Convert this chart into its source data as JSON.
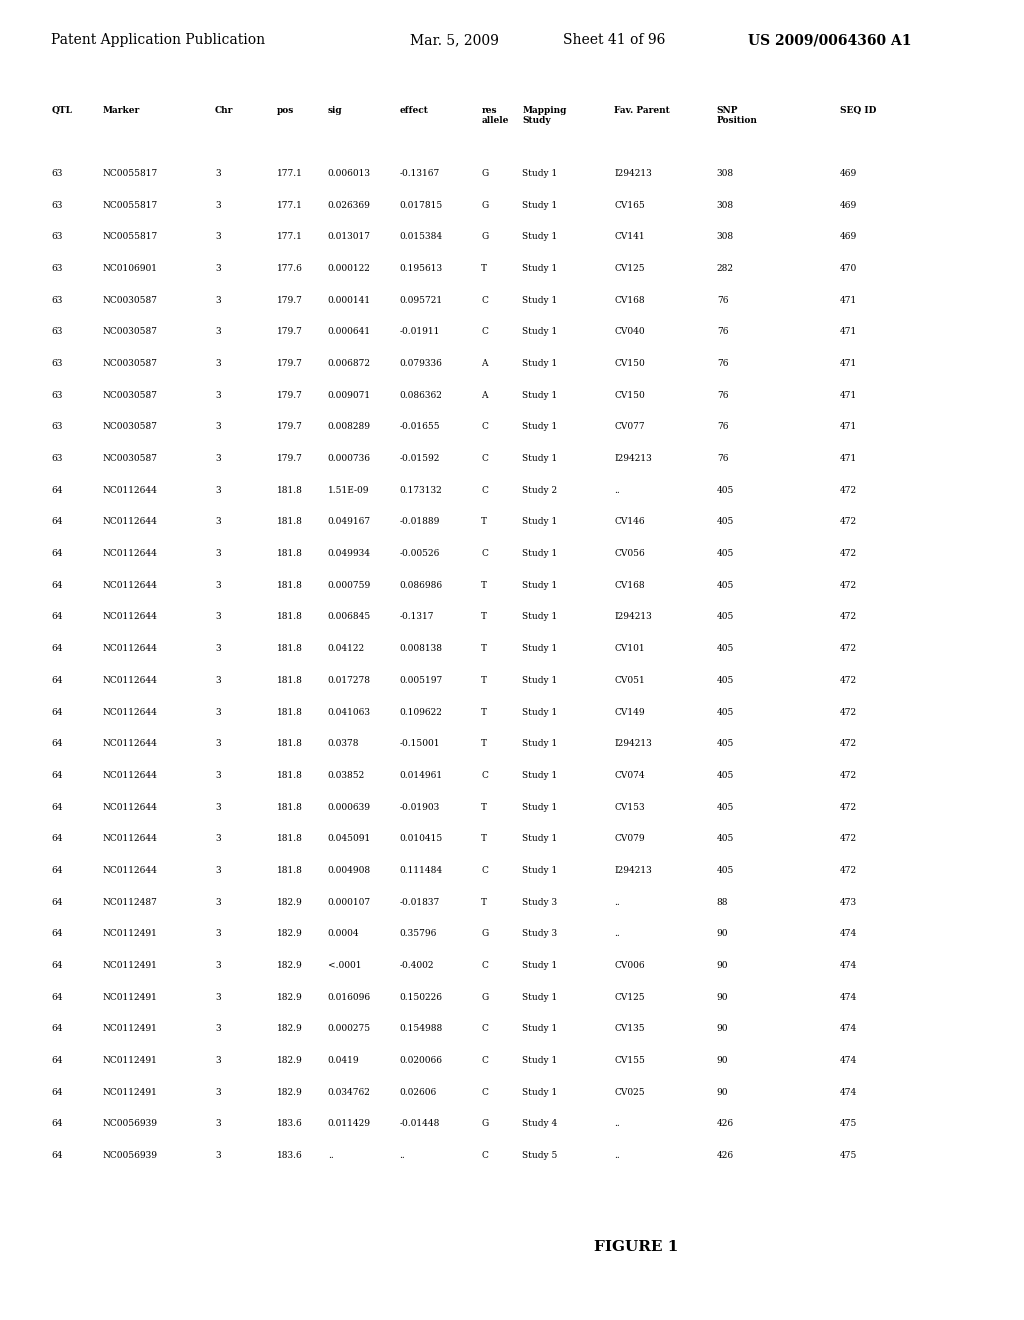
{
  "header_line": "Patent Application Publication    Mar. 5, 2009  Sheet 41 of 96    US 2009/0064360 A1",
  "figure_label": "FIGURE 1",
  "columns": [
    "QTL",
    "Marker",
    "Chr",
    "pos",
    "sig",
    "effect",
    "res allele",
    "Mapping\nStudy",
    "Fav. Parent",
    "SNP\nPosition",
    "SEQ ID"
  ],
  "rows": [
    [
      "63",
      "NC0055817",
      "3",
      "177.1",
      "0.006013",
      "-0.13167",
      "G",
      "Study 1",
      "I294213",
      "308",
      "469"
    ],
    [
      "63",
      "NC0055817",
      "3",
      "177.1",
      "0.026369",
      "0.017815",
      "G",
      "Study 1",
      "CV165",
      "308",
      "469"
    ],
    [
      "63",
      "NC0055817",
      "3",
      "177.1",
      "0.013017",
      "0.015384",
      "G",
      "Study 1",
      "CV141",
      "308",
      "469"
    ],
    [
      "63",
      "NC0106901",
      "3",
      "177.6",
      "0.000122",
      "0.195613",
      "T",
      "Study 1",
      "CV125",
      "282",
      "470"
    ],
    [
      "63",
      "NC0030587",
      "3",
      "179.7",
      "0.000141",
      "0.095721",
      "C",
      "Study 1",
      "CV168",
      "76",
      "471"
    ],
    [
      "63",
      "NC0030587",
      "3",
      "179.7",
      "0.000641",
      "-0.01911",
      "C",
      "Study 1",
      "CV040",
      "76",
      "471"
    ],
    [
      "63",
      "NC0030587",
      "3",
      "179.7",
      "0.006872",
      "0.079336",
      "A",
      "Study 1",
      "CV150",
      "76",
      "471"
    ],
    [
      "63",
      "NC0030587",
      "3",
      "179.7",
      "0.009071",
      "0.086362",
      "A",
      "Study 1",
      "CV150",
      "76",
      "471"
    ],
    [
      "63",
      "NC0030587",
      "3",
      "179.7",
      "0.008289",
      "-0.01655",
      "C",
      "Study 1",
      "CV077",
      "76",
      "471"
    ],
    [
      "63",
      "NC0030587",
      "3",
      "179.7",
      "0.000736",
      "-0.01592",
      "C",
      "Study 1",
      "I294213",
      "76",
      "471"
    ],
    [
      "64",
      "NC0112644",
      "3",
      "181.8",
      "1.51E-09",
      "0.173132",
      "C",
      "Study 2",
      "..",
      "405",
      "472"
    ],
    [
      "64",
      "NC0112644",
      "3",
      "181.8",
      "0.049167",
      "-0.01889",
      "T",
      "Study 1",
      "CV146",
      "405",
      "472"
    ],
    [
      "64",
      "NC0112644",
      "3",
      "181.8",
      "0.049934",
      "-0.00526",
      "C",
      "Study 1",
      "CV056",
      "405",
      "472"
    ],
    [
      "64",
      "NC0112644",
      "3",
      "181.8",
      "0.000759",
      "0.086986",
      "T",
      "Study 1",
      "CV168",
      "405",
      "472"
    ],
    [
      "64",
      "NC0112644",
      "3",
      "181.8",
      "0.006845",
      "-0.1317",
      "T",
      "Study 1",
      "I294213",
      "405",
      "472"
    ],
    [
      "64",
      "NC0112644",
      "3",
      "181.8",
      "0.04122",
      "0.008138",
      "T",
      "Study 1",
      "CV101",
      "405",
      "472"
    ],
    [
      "64",
      "NC0112644",
      "3",
      "181.8",
      "0.017278",
      "0.005197",
      "T",
      "Study 1",
      "CV051",
      "405",
      "472"
    ],
    [
      "64",
      "NC0112644",
      "3",
      "181.8",
      "0.041063",
      "0.109622",
      "T",
      "Study 1",
      "CV149",
      "405",
      "472"
    ],
    [
      "64",
      "NC0112644",
      "3",
      "181.8",
      "0.0378",
      "-0.15001",
      "T",
      "Study 1",
      "I294213",
      "405",
      "472"
    ],
    [
      "64",
      "NC0112644",
      "3",
      "181.8",
      "0.03852",
      "0.014961",
      "C",
      "Study 1",
      "CV074",
      "405",
      "472"
    ],
    [
      "64",
      "NC0112644",
      "3",
      "181.8",
      "0.000639",
      "-0.01903",
      "T",
      "Study 1",
      "CV153",
      "405",
      "472"
    ],
    [
      "64",
      "NC0112644",
      "3",
      "181.8",
      "0.045091",
      "0.010415",
      "T",
      "Study 1",
      "CV079",
      "405",
      "472"
    ],
    [
      "64",
      "NC0112644",
      "3",
      "181.8",
      "0.004908",
      "0.111484",
      "C",
      "Study 1",
      "I294213",
      "405",
      "472"
    ],
    [
      "64",
      "NC0112487",
      "3",
      "182.9",
      "0.000107",
      "-0.01837",
      "T",
      "Study 3",
      "..",
      "88",
      "473"
    ],
    [
      "64",
      "NC0112491",
      "3",
      "182.9",
      "0.0004",
      "0.35796",
      "G",
      "Study 3",
      "..",
      "90",
      "474"
    ],
    [
      "64",
      "NC0112491",
      "3",
      "182.9",
      "<.0001",
      "-0.4002",
      "C",
      "Study 1",
      "CV006",
      "90",
      "474"
    ],
    [
      "64",
      "NC0112491",
      "3",
      "182.9",
      "0.016096",
      "0.150226",
      "G",
      "Study 1",
      "CV125",
      "90",
      "474"
    ],
    [
      "64",
      "NC0112491",
      "3",
      "182.9",
      "0.000275",
      "0.154988",
      "C",
      "Study 1",
      "CV135",
      "90",
      "474"
    ],
    [
      "64",
      "NC0112491",
      "3",
      "182.9",
      "0.0419",
      "0.020066",
      "C",
      "Study 1",
      "CV155",
      "90",
      "474"
    ],
    [
      "64",
      "NC0112491",
      "3",
      "182.9",
      "0.034762",
      "0.02606",
      "C",
      "Study 1",
      "CV025",
      "90",
      "474"
    ],
    [
      "64",
      "NC0056939",
      "3",
      "183.6",
      "0.011429",
      "-0.01448",
      "G",
      "Study 4",
      "..",
      "426",
      "475"
    ],
    [
      "64",
      "NC0056939",
      "3",
      "183.6",
      "..",
      "..",
      "C",
      "Study 5",
      "..",
      "426",
      "475"
    ]
  ],
  "background_color": "#ffffff",
  "text_color": "#000000",
  "font_size": 6.5,
  "header_font_size": 10,
  "figure_font_size": 11
}
